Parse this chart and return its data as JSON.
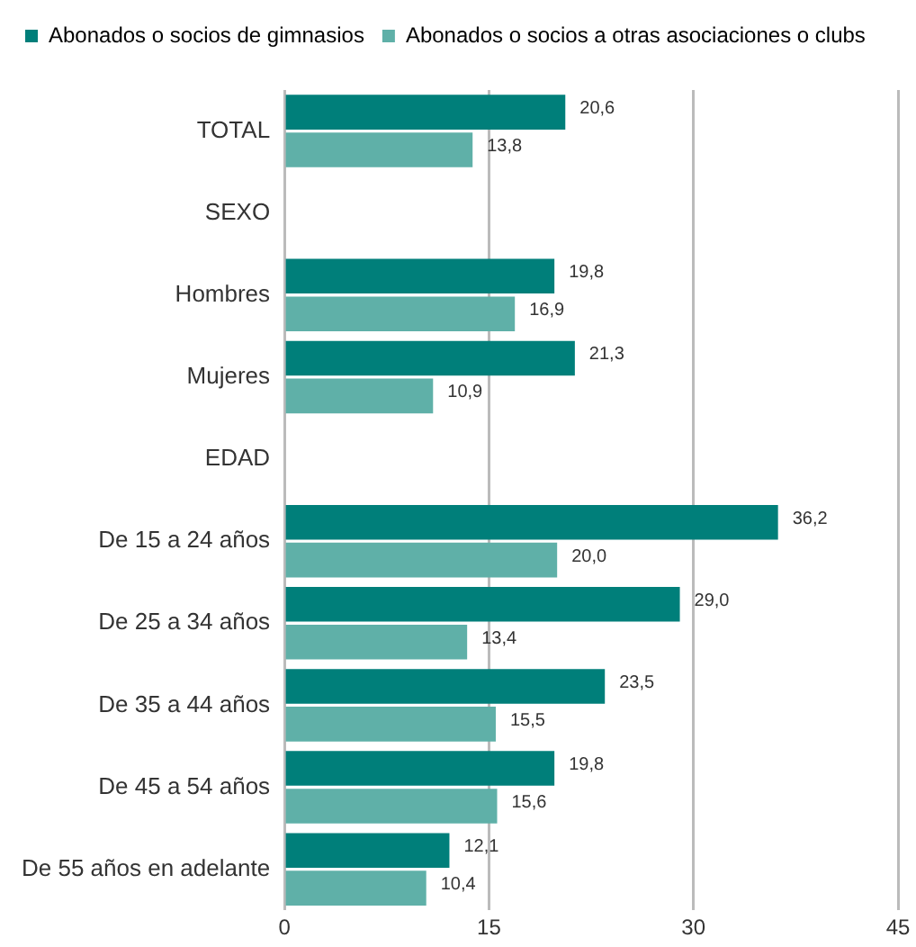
{
  "chart_data": {
    "type": "bar",
    "orientation": "horizontal",
    "categories": [
      "TOTAL",
      "SEXO",
      "Hombres",
      "Mujeres",
      "EDAD",
      "De 15 a 24 años",
      "De 25 a 34 años",
      "De 35 a 44 años",
      "De 45 a 54 años",
      "De 55 años en adelante"
    ],
    "series": [
      {
        "name": "Abonados o socios de gimnasios",
        "color": "#007f7a",
        "values": [
          20.6,
          null,
          19.8,
          21.3,
          null,
          36.2,
          29.0,
          23.5,
          19.8,
          12.1
        ],
        "value_labels": [
          "20,6",
          null,
          "19,8",
          "21,3",
          null,
          "36,2",
          "29,0",
          "23,5",
          "19,8",
          "12,1"
        ]
      },
      {
        "name": "Abonados o socios a otras asociaciones o clubs",
        "color": "#5fb0a8",
        "values": [
          13.8,
          null,
          16.9,
          10.9,
          null,
          20.0,
          13.4,
          15.5,
          15.6,
          10.4
        ],
        "value_labels": [
          "13,8",
          null,
          "16,9",
          "10,9",
          null,
          "20,0",
          "13,4",
          "15,5",
          "15,6",
          "10,4"
        ]
      }
    ],
    "xlim": [
      0,
      45
    ],
    "xticks": [
      0,
      15,
      30,
      45
    ],
    "grid": "x",
    "legend": "top left"
  }
}
